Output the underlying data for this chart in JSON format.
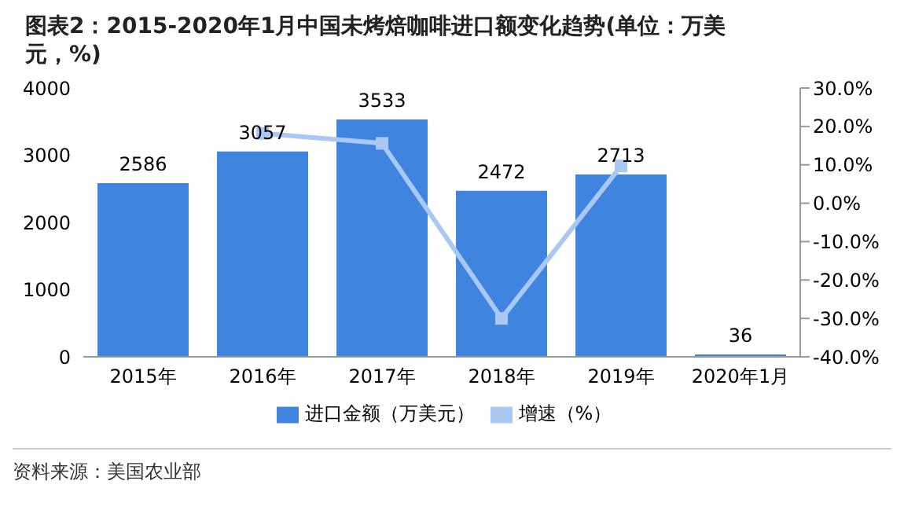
{
  "chart_data": {
    "type": "bar",
    "title": "图表2：2015-2020年1月中国未烤焙咖啡进口额变化趋势(单位：万美元，%)",
    "categories": [
      "2015年",
      "2016年",
      "2017年",
      "2018年",
      "2019年",
      "2020年1月"
    ],
    "series": [
      {
        "name": "进口金额（万美元）",
        "color": "#3f85e0",
        "values": [
          2586,
          3057,
          3533,
          2472,
          2713,
          36
        ],
        "value_labels": [
          "2586",
          "3057",
          "3533",
          "2472",
          "2713",
          "36"
        ]
      },
      {
        "name": "增速（%）",
        "type": "line",
        "axis": "y2",
        "color": "#a9c8f4",
        "marker": "square",
        "values": [
          null,
          18.2,
          15.6,
          -30.0,
          9.7,
          null
        ]
      }
    ],
    "ylim": [
      0,
      4000
    ],
    "yticks": [
      0,
      1000,
      2000,
      3000,
      4000
    ],
    "y2lim": [
      -40,
      30
    ],
    "y2ticks": [
      {
        "value": -40,
        "label": "-40.0%"
      },
      {
        "value": -30,
        "label": "-30.0%"
      },
      {
        "value": -20,
        "label": "-20.0%"
      },
      {
        "value": -10,
        "label": "-10.0%"
      },
      {
        "value": 0,
        "label": "0.0%"
      },
      {
        "value": 10,
        "label": "10.0%"
      },
      {
        "value": 20,
        "label": "20.0%"
      },
      {
        "value": 30,
        "label": "30.0%"
      }
    ],
    "grid": false,
    "legend": "bottom",
    "annotations": [
      "资料来源：美国农业部"
    ]
  }
}
